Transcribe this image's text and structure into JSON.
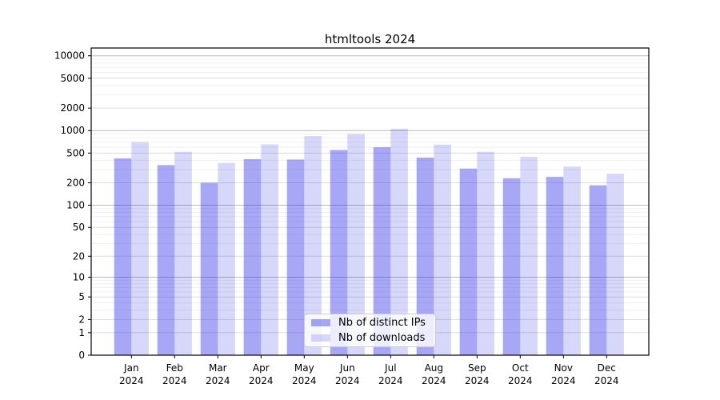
{
  "title": "htmltools 2024",
  "chart_data": {
    "type": "bar",
    "title": "htmltools 2024",
    "months": [
      "Jan",
      "Feb",
      "Mar",
      "Apr",
      "May",
      "Jun",
      "Jul",
      "Aug",
      "Sep",
      "Oct",
      "Nov",
      "Dec"
    ],
    "year": "2024",
    "series": [
      {
        "name": "Nb of distinct IPs",
        "color": "rgba(45,45,230,0.42)",
        "values": [
          425,
          345,
          200,
          415,
          410,
          550,
          600,
          435,
          310,
          230,
          240,
          185
        ]
      },
      {
        "name": "Nb of downloads",
        "color": "rgba(45,45,230,0.19)",
        "values": [
          700,
          520,
          370,
          655,
          845,
          900,
          1060,
          650,
          520,
          445,
          330,
          265
        ]
      }
    ],
    "y_scale": "log10(1+v)",
    "y_ticks": [
      0,
      1,
      2,
      5,
      10,
      20,
      50,
      100,
      200,
      500,
      1000,
      2000,
      5000,
      10000
    ],
    "y_tick_labels": [
      "0",
      "1",
      "2",
      "5",
      "10",
      "20",
      "50",
      "100",
      "200",
      "500",
      "1000",
      "2000",
      "5000",
      "10000"
    ],
    "ylim": [
      0,
      12700
    ],
    "grid": true,
    "legend_position": "lower center",
    "colors": {
      "axis": "#000000",
      "grid_major_decade": "#b9b9b9",
      "grid_major": "#dcdcdc",
      "grid_minor": "#efefef",
      "text": "#000000"
    }
  }
}
